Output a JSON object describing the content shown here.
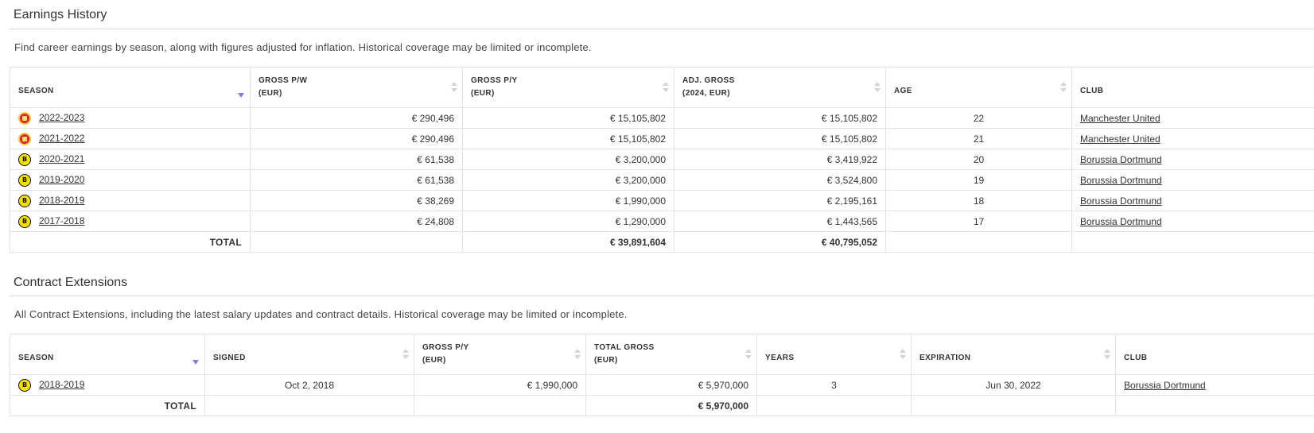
{
  "earnings": {
    "title": "Earnings History",
    "description": "Find career earnings by season, along with figures adjusted for inflation. Historical coverage may be limited or incomplete.",
    "headers": {
      "season": "SEASON",
      "gross_pw": [
        "GROSS P/W",
        "(EUR)"
      ],
      "gross_py": [
        "GROSS P/Y",
        "(EUR)"
      ],
      "adj_gross": [
        "ADJ. GROSS",
        "(2024, EUR)"
      ],
      "age": "AGE",
      "club": "CLUB"
    },
    "rows": [
      {
        "logo": "manchester-united-logo",
        "season": "2022-2023",
        "gross_pw": "€ 290,496",
        "gross_py": "€ 15,105,802",
        "adj_gross": "€ 15,105,802",
        "age": "22",
        "club": "Manchester United"
      },
      {
        "logo": "manchester-united-logo",
        "season": "2021-2022",
        "gross_pw": "€ 290,496",
        "gross_py": "€ 15,105,802",
        "adj_gross": "€ 15,105,802",
        "age": "21",
        "club": "Manchester United"
      },
      {
        "logo": "borussia-dortmund-logo",
        "season": "2020-2021",
        "gross_pw": "€ 61,538",
        "gross_py": "€ 3,200,000",
        "adj_gross": "€ 3,419,922",
        "age": "20",
        "club": "Borussia Dortmund"
      },
      {
        "logo": "borussia-dortmund-logo",
        "season": "2019-2020",
        "gross_pw": "€ 61,538",
        "gross_py": "€ 3,200,000",
        "adj_gross": "€ 3,524,800",
        "age": "19",
        "club": "Borussia Dortmund"
      },
      {
        "logo": "borussia-dortmund-logo",
        "season": "2018-2019",
        "gross_pw": "€ 38,269",
        "gross_py": "€ 1,990,000",
        "adj_gross": "€ 2,195,161",
        "age": "18",
        "club": "Borussia Dortmund"
      },
      {
        "logo": "borussia-dortmund-logo",
        "season": "2017-2018",
        "gross_pw": "€ 24,808",
        "gross_py": "€ 1,290,000",
        "adj_gross": "€ 1,443,565",
        "age": "17",
        "club": "Borussia Dortmund"
      }
    ],
    "total": {
      "label": "TOTAL",
      "gross_py": "€ 39,891,604",
      "adj_gross": "€ 40,795,052"
    }
  },
  "extensions": {
    "title": "Contract Extensions",
    "description": "All Contract Extensions, including the latest salary updates and contract details. Historical coverage may be limited or incomplete.",
    "headers": {
      "season": "SEASON",
      "signed": "SIGNED",
      "gross_py": [
        "GROSS P/Y",
        "(EUR)"
      ],
      "total_gross": [
        "TOTAL GROSS",
        "(EUR)"
      ],
      "years": "YEARS",
      "expiration": "EXPIRATION",
      "club": "CLUB"
    },
    "rows": [
      {
        "logo": "borussia-dortmund-logo",
        "season": "2018-2019",
        "signed": "Oct 2, 2018",
        "gross_py": "€ 1,990,000",
        "total_gross": "€ 5,970,000",
        "years": "3",
        "expiration": "Jun 30, 2022",
        "club": "Borussia Dortmund"
      }
    ],
    "total": {
      "label": "TOTAL",
      "total_gross": "€ 5,970,000"
    }
  },
  "colors": {
    "sort_active": "#7f7fd6",
    "mu_red": "#d8262b",
    "bvb_yellow": "#f7e000"
  }
}
